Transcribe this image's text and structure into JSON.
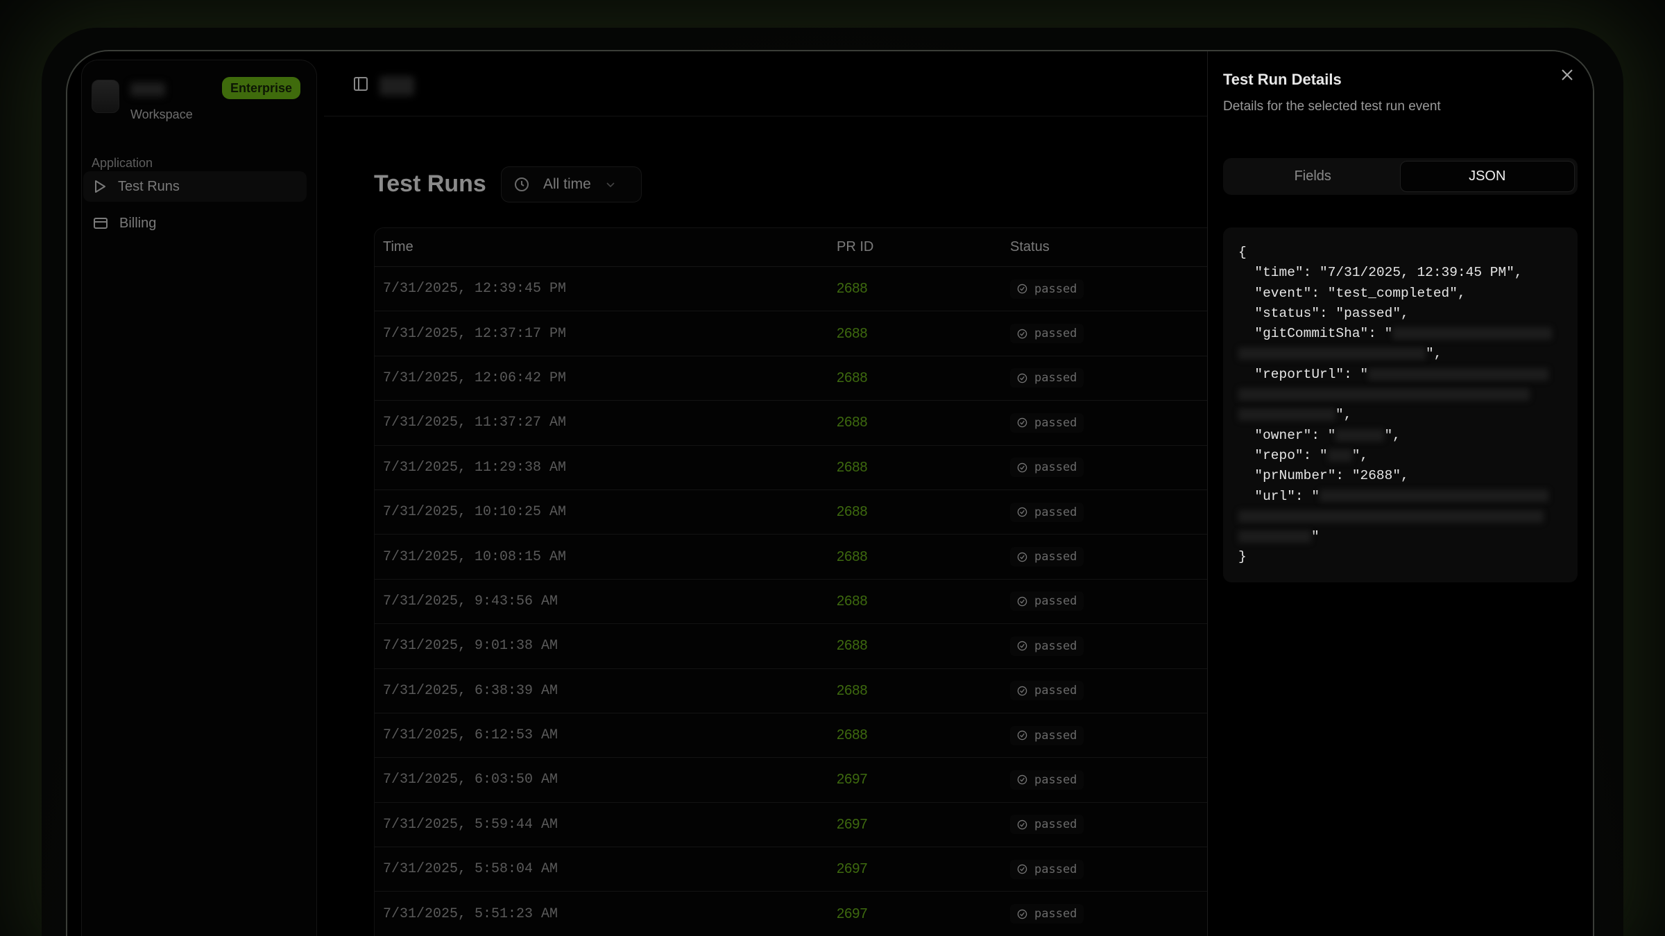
{
  "sidebar": {
    "workspace_label": "Workspace",
    "plan_badge": "Enterprise",
    "section": "Application",
    "items": [
      {
        "label": "Test Runs",
        "icon": "play-icon",
        "active": true
      },
      {
        "label": "Billing",
        "icon": "credit-card-icon",
        "active": false
      }
    ]
  },
  "main": {
    "title": "Test Runs",
    "filter": "All time",
    "columns": [
      "Time",
      "PR ID",
      "Status"
    ],
    "rows": [
      {
        "time": "7/31/2025, 12:39:45 PM",
        "pr": "2688",
        "status": "passed"
      },
      {
        "time": "7/31/2025, 12:37:17 PM",
        "pr": "2688",
        "status": "passed"
      },
      {
        "time": "7/31/2025, 12:06:42 PM",
        "pr": "2688",
        "status": "passed"
      },
      {
        "time": "7/31/2025, 11:37:27 AM",
        "pr": "2688",
        "status": "passed"
      },
      {
        "time": "7/31/2025, 11:29:38 AM",
        "pr": "2688",
        "status": "passed"
      },
      {
        "time": "7/31/2025, 10:10:25 AM",
        "pr": "2688",
        "status": "passed"
      },
      {
        "time": "7/31/2025, 10:08:15 AM",
        "pr": "2688",
        "status": "passed"
      },
      {
        "time": "7/31/2025, 9:43:56 AM",
        "pr": "2688",
        "status": "passed"
      },
      {
        "time": "7/31/2025, 9:01:38 AM",
        "pr": "2688",
        "status": "passed"
      },
      {
        "time": "7/31/2025, 6:38:39 AM",
        "pr": "2688",
        "status": "passed"
      },
      {
        "time": "7/31/2025, 6:12:53 AM",
        "pr": "2688",
        "status": "passed"
      },
      {
        "time": "7/31/2025, 6:03:50 AM",
        "pr": "2697",
        "status": "passed"
      },
      {
        "time": "7/31/2025, 5:59:44 AM",
        "pr": "2697",
        "status": "passed"
      },
      {
        "time": "7/31/2025, 5:58:04 AM",
        "pr": "2697",
        "status": "passed"
      },
      {
        "time": "7/31/2025, 5:51:23 AM",
        "pr": "2697",
        "status": "passed"
      }
    ]
  },
  "panel": {
    "title": "Test Run Details",
    "subtitle": "Details for the selected test run event",
    "tabs": [
      {
        "label": "Fields",
        "active": false
      },
      {
        "label": "JSON",
        "active": true
      }
    ],
    "json": {
      "time": "7/31/2025, 12:39:45 PM",
      "event": "test_completed",
      "status": "passed",
      "prNumber": "2688"
    }
  },
  "colors": {
    "accent": "#3f6b0c",
    "pr_text": "#3e6a0f"
  }
}
